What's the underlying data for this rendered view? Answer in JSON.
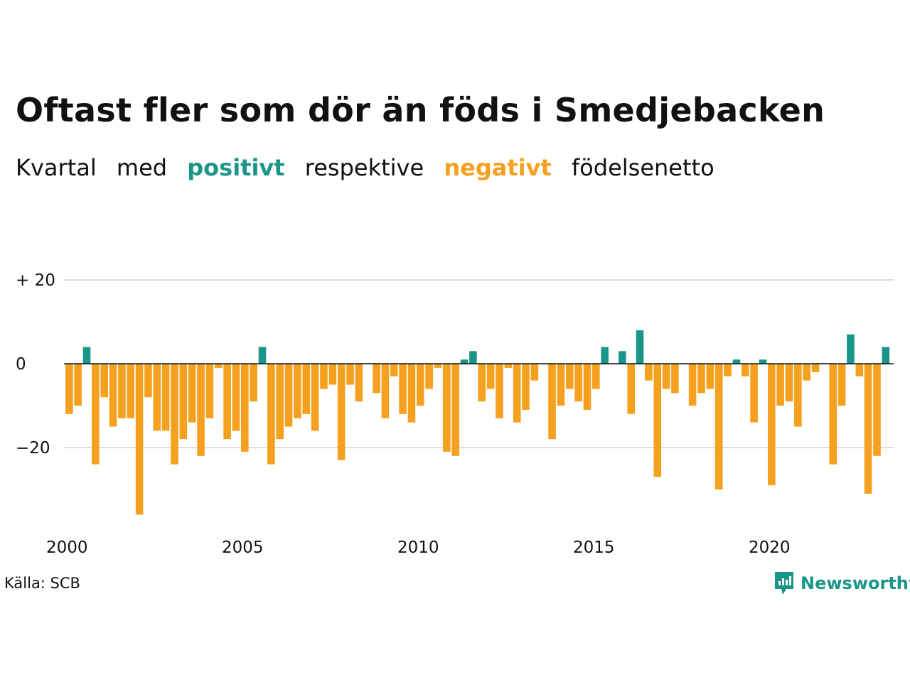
{
  "title": "Oftast fler som dör än föds i Smedjebacken",
  "subtitle": {
    "word1": "Kvartal",
    "word2": "med",
    "positive": "positivt",
    "word3": "respektive",
    "negative": "negativt",
    "word4": "födelsenetto"
  },
  "source": "Källa: SCB",
  "brand": "Newsworthy",
  "colors": {
    "positive": "#1a9688",
    "negative": "#f5a11f",
    "grid": "#dddddd",
    "axis": "#111111",
    "brand": "#1a9688"
  },
  "chart_data": {
    "type": "bar",
    "title": "Oftast fler som dör än föds i Smedjebacken",
    "xlabel": "",
    "ylabel": "",
    "ylim": [
      -40,
      20
    ],
    "y_ticks": [
      20,
      0,
      -20
    ],
    "y_tick_labels": [
      "+ 20",
      "0",
      "−20"
    ],
    "x_tick_labels": [
      "2000",
      "2005",
      "2010",
      "2015",
      "2020"
    ],
    "x_tick_years": [
      2000,
      2005,
      2010,
      2015,
      2020
    ],
    "start_year": 2000,
    "periods_per_year": 4,
    "grid": true,
    "values": [
      -12,
      -10,
      4,
      -24,
      -8,
      -15,
      -13,
      -13,
      -36,
      -8,
      -16,
      -16,
      -24,
      -18,
      -14,
      -22,
      -13,
      -1,
      -18,
      -16,
      -21,
      -9,
      4,
      -24,
      -18,
      -15,
      -13,
      -12,
      -16,
      -6,
      -5,
      -23,
      -5,
      -9,
      0,
      -7,
      -13,
      -3,
      -12,
      -14,
      -10,
      -6,
      -1,
      -21,
      -22,
      1,
      3,
      -9,
      -6,
      -13,
      -1,
      -14,
      -11,
      -4,
      0,
      -18,
      -10,
      -6,
      -9,
      -11,
      -6,
      4,
      0,
      3,
      -12,
      8,
      -4,
      -27,
      -6,
      -7,
      0,
      -10,
      -7,
      -6,
      -30,
      -3,
      1,
      -3,
      -14,
      1,
      -29,
      -10,
      -9,
      -15,
      -4,
      -2,
      0,
      -24,
      -10,
      7,
      -3,
      -31,
      -22,
      4
    ]
  }
}
